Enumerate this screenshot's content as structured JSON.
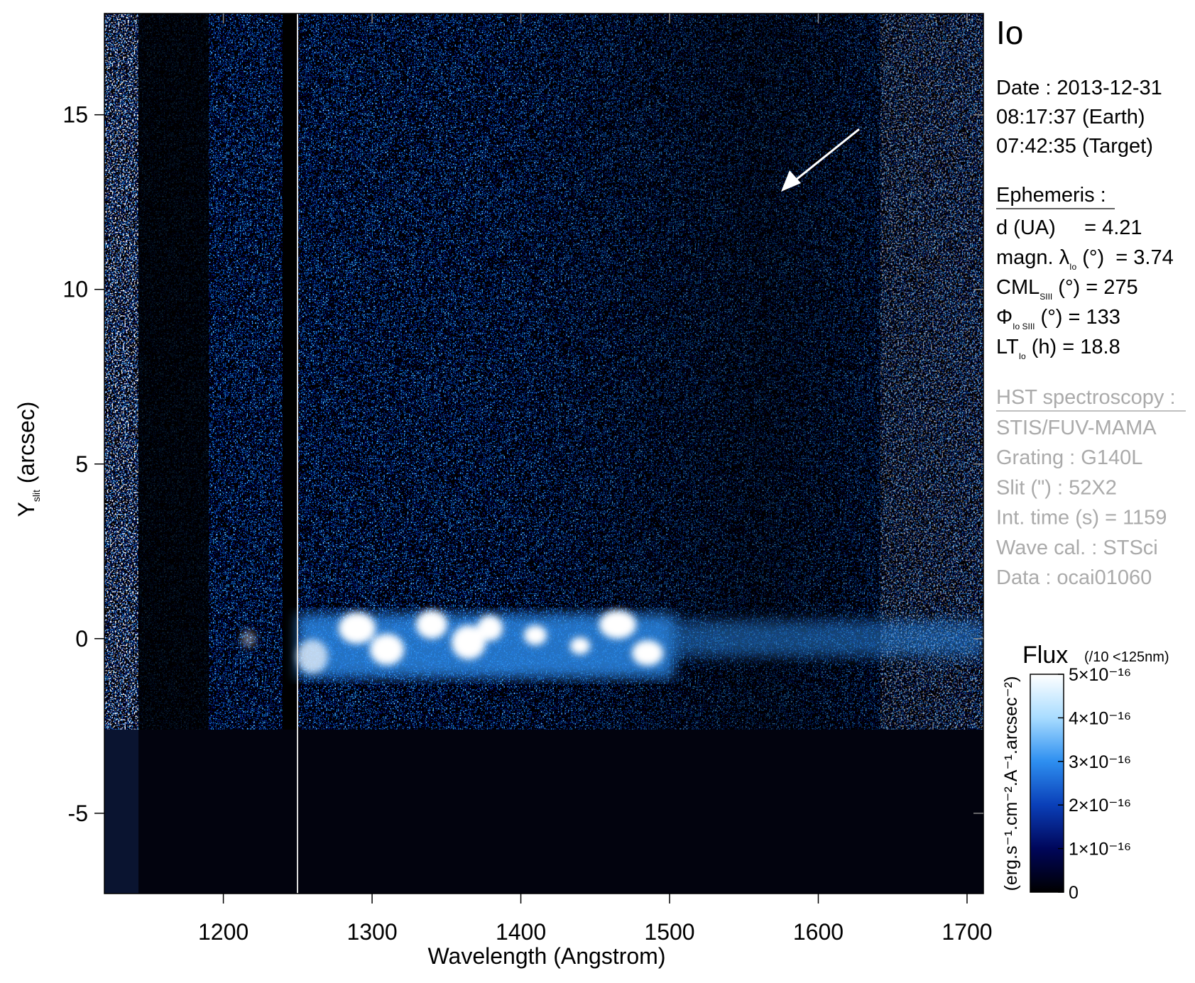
{
  "chart_data": {
    "type": "heatmap",
    "title": "Io",
    "x_label": "Wavelength (Angstrom)",
    "y_label": {
      "text": "Y",
      "sub": "slit",
      "rest": " (arcsec)"
    },
    "xlim": [
      1120,
      1711
    ],
    "ylim": [
      -7.3,
      17.9
    ],
    "xticks": [
      1200,
      1300,
      1400,
      1500,
      1600,
      1700
    ],
    "yticks": [
      -5,
      0,
      5,
      10,
      15
    ],
    "date": [
      "Date : 2013-12-31",
      "08:17:37 (Earth)",
      "07:42:35 (Target)"
    ],
    "ephemeris_title": "Ephemeris :",
    "ephemeris": [
      {
        "pre": "d (UA)     = 4.21"
      },
      {
        "pre": "magn. λ",
        "sub": "Io",
        "post": " (°)  = 3.74"
      },
      {
        "pre": "CML",
        "sub": "SIII",
        "post": " (°) = 275"
      },
      {
        "pre": "Φ",
        "sub": "Io SIII",
        "post": " (°) = 133"
      },
      {
        "pre": "LT",
        "sub": "Io",
        "post": " (h) = 18.8"
      }
    ],
    "instrument_title": "HST spectroscopy :",
    "instrument": [
      "STIS/FUV-MAMA",
      "Grating : G140L",
      "Slit (\") : 52X2",
      "Int. time (s) = 1159",
      "Wave cal. : STSci",
      "Data : ocai01060"
    ],
    "colorbar": {
      "title": "Flux",
      "note": "(/10 <125nm)",
      "label": "(erg.s⁻¹.cm⁻².A⁻¹.arcsec⁻²)",
      "lim": [
        0,
        5e-16
      ],
      "ticks": [
        0,
        {
          "value": 1e-16,
          "label": "1×10⁻¹⁶"
        },
        {
          "value": 2e-16,
          "label": "2×10⁻¹⁶"
        },
        {
          "value": 3e-16,
          "label": "3×10⁻¹⁶"
        },
        {
          "value": 4e-16,
          "label": "4×10⁻¹⁶"
        },
        {
          "value": 5e-16,
          "label": "5×10⁻¹⁶"
        }
      ],
      "colors": [
        "#000000",
        "#00065a",
        "#0a3fb8",
        "#2e8ff0",
        "#a8dcff",
        "#ffffff"
      ]
    }
  }
}
